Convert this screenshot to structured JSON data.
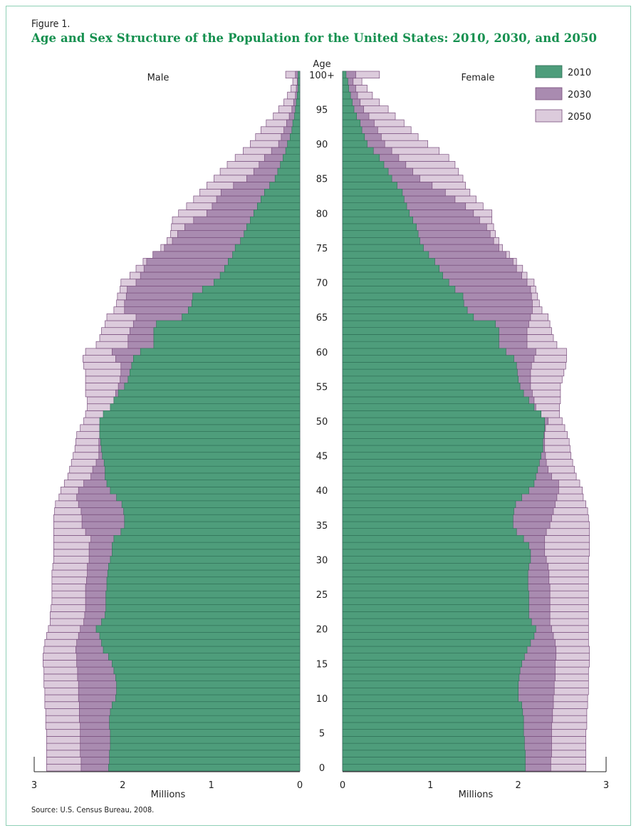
{
  "figure_label": "Figure 1.",
  "source": "Source: U.S. Census Bureau, 2008.",
  "colors": {
    "s2010": "#4e9d7b",
    "s2030": "#a98bb0",
    "s2050": "#dccbdc",
    "outline": "#7a4f7e",
    "frame": "#8fd0b6",
    "title": "#15904f"
  },
  "chart_data": {
    "type": "bar",
    "subtype": "population-pyramid",
    "title": "Age and Sex Structure of the Population for the United States: 2010, 2030, and 2050",
    "ylabel": "Age",
    "xlabel": "Millions",
    "xlim": [
      0,
      3
    ],
    "x_ticks": [
      "0",
      "1",
      "2",
      "3"
    ],
    "age_tick_labels": [
      "0",
      "5",
      "10",
      "15",
      "20",
      "25",
      "30",
      "35",
      "40",
      "45",
      "50",
      "55",
      "60",
      "65",
      "70",
      "75",
      "80",
      "85",
      "90",
      "95",
      "100+"
    ],
    "left_label": "Male",
    "right_label": "Female",
    "legend": [
      "2010",
      "2030",
      "2050"
    ],
    "legend_position": "top-right",
    "ages": "0 to 100+ by single year",
    "series": [
      {
        "name": "2010",
        "sex": "Male",
        "values": [
          2.16,
          2.15,
          2.15,
          2.14,
          2.14,
          2.14,
          2.15,
          2.15,
          2.14,
          2.12,
          2.08,
          2.07,
          2.07,
          2.08,
          2.1,
          2.12,
          2.16,
          2.22,
          2.24,
          2.26,
          2.3,
          2.24,
          2.2,
          2.19,
          2.19,
          2.19,
          2.18,
          2.18,
          2.17,
          2.16,
          2.14,
          2.12,
          2.12,
          2.1,
          2.02,
          1.98,
          1.98,
          1.99,
          2.01,
          2.07,
          2.14,
          2.18,
          2.2,
          2.2,
          2.21,
          2.23,
          2.24,
          2.25,
          2.26,
          2.26,
          2.26,
          2.22,
          2.14,
          2.1,
          2.05,
          1.98,
          1.94,
          1.92,
          1.9,
          1.88,
          1.8,
          1.65,
          1.65,
          1.65,
          1.62,
          1.33,
          1.26,
          1.22,
          1.21,
          1.1,
          0.97,
          0.9,
          0.85,
          0.81,
          0.76,
          0.73,
          0.67,
          0.63,
          0.6,
          0.56,
          0.52,
          0.48,
          0.44,
          0.4,
          0.34,
          0.28,
          0.25,
          0.22,
          0.19,
          0.16,
          0.14,
          0.11,
          0.09,
          0.08,
          0.06,
          0.05,
          0.04,
          0.03,
          0.02,
          0.02,
          0.02
        ]
      },
      {
        "name": "2030",
        "sex": "Male",
        "values": [
          2.47,
          2.47,
          2.48,
          2.48,
          2.48,
          2.48,
          2.48,
          2.49,
          2.49,
          2.49,
          2.5,
          2.5,
          2.5,
          2.51,
          2.51,
          2.52,
          2.52,
          2.53,
          2.52,
          2.5,
          2.48,
          2.44,
          2.43,
          2.42,
          2.42,
          2.42,
          2.42,
          2.41,
          2.4,
          2.4,
          2.38,
          2.38,
          2.38,
          2.36,
          2.42,
          2.46,
          2.46,
          2.47,
          2.5,
          2.52,
          2.5,
          2.44,
          2.36,
          2.34,
          2.3,
          2.27,
          2.27,
          2.27,
          2.26,
          2.26,
          2.24,
          2.16,
          2.12,
          2.1,
          2.08,
          2.05,
          2.03,
          2.02,
          2.02,
          2.08,
          2.12,
          1.94,
          1.94,
          1.92,
          1.88,
          1.85,
          1.98,
          1.98,
          1.96,
          1.95,
          1.85,
          1.8,
          1.76,
          1.73,
          1.66,
          1.53,
          1.44,
          1.38,
          1.3,
          1.2,
          1.05,
          0.99,
          0.94,
          0.89,
          0.75,
          0.6,
          0.52,
          0.46,
          0.4,
          0.32,
          0.24,
          0.21,
          0.18,
          0.15,
          0.12,
          0.09,
          0.07,
          0.05,
          0.04,
          0.03,
          0.05
        ]
      },
      {
        "name": "2050",
        "sex": "Male",
        "values": [
          2.86,
          2.86,
          2.86,
          2.86,
          2.86,
          2.86,
          2.87,
          2.87,
          2.87,
          2.88,
          2.88,
          2.88,
          2.89,
          2.89,
          2.89,
          2.9,
          2.9,
          2.89,
          2.88,
          2.86,
          2.84,
          2.82,
          2.82,
          2.81,
          2.8,
          2.8,
          2.8,
          2.8,
          2.8,
          2.79,
          2.78,
          2.78,
          2.78,
          2.78,
          2.78,
          2.78,
          2.78,
          2.77,
          2.76,
          2.72,
          2.7,
          2.66,
          2.62,
          2.6,
          2.58,
          2.56,
          2.54,
          2.53,
          2.52,
          2.48,
          2.44,
          2.42,
          2.4,
          2.4,
          2.42,
          2.42,
          2.42,
          2.42,
          2.44,
          2.45,
          2.42,
          2.3,
          2.26,
          2.24,
          2.2,
          2.18,
          2.1,
          2.07,
          2.06,
          2.03,
          2.02,
          1.92,
          1.85,
          1.77,
          1.64,
          1.57,
          1.5,
          1.46,
          1.45,
          1.44,
          1.37,
          1.28,
          1.2,
          1.13,
          1.05,
          0.97,
          0.9,
          0.82,
          0.73,
          0.64,
          0.56,
          0.5,
          0.44,
          0.38,
          0.3,
          0.24,
          0.18,
          0.14,
          0.1,
          0.08,
          0.16
        ]
      },
      {
        "name": "2010",
        "sex": "Female",
        "values": [
          2.08,
          2.08,
          2.08,
          2.07,
          2.07,
          2.06,
          2.06,
          2.06,
          2.05,
          2.04,
          2.0,
          2.0,
          2.0,
          2.01,
          2.02,
          2.04,
          2.07,
          2.1,
          2.14,
          2.18,
          2.2,
          2.15,
          2.12,
          2.12,
          2.12,
          2.12,
          2.11,
          2.11,
          2.11,
          2.12,
          2.14,
          2.14,
          2.12,
          2.06,
          1.98,
          1.94,
          1.94,
          1.95,
          1.97,
          2.04,
          2.12,
          2.18,
          2.2,
          2.22,
          2.24,
          2.26,
          2.28,
          2.28,
          2.29,
          2.3,
          2.3,
          2.26,
          2.18,
          2.12,
          2.06,
          2.02,
          2.0,
          1.99,
          1.98,
          1.95,
          1.86,
          1.78,
          1.78,
          1.78,
          1.74,
          1.49,
          1.42,
          1.38,
          1.37,
          1.28,
          1.21,
          1.14,
          1.1,
          1.05,
          0.98,
          0.92,
          0.88,
          0.86,
          0.84,
          0.8,
          0.76,
          0.73,
          0.7,
          0.68,
          0.62,
          0.56,
          0.52,
          0.47,
          0.42,
          0.35,
          0.28,
          0.25,
          0.22,
          0.2,
          0.16,
          0.13,
          0.11,
          0.09,
          0.07,
          0.06,
          0.04
        ]
      },
      {
        "name": "2030",
        "sex": "Female",
        "values": [
          2.37,
          2.37,
          2.38,
          2.38,
          2.38,
          2.38,
          2.38,
          2.39,
          2.39,
          2.4,
          2.4,
          2.41,
          2.41,
          2.42,
          2.42,
          2.42,
          2.43,
          2.43,
          2.42,
          2.4,
          2.38,
          2.36,
          2.36,
          2.36,
          2.36,
          2.36,
          2.36,
          2.35,
          2.35,
          2.34,
          2.32,
          2.3,
          2.3,
          2.3,
          2.32,
          2.36,
          2.38,
          2.4,
          2.42,
          2.44,
          2.46,
          2.46,
          2.38,
          2.34,
          2.32,
          2.31,
          2.3,
          2.3,
          2.3,
          2.31,
          2.34,
          2.26,
          2.2,
          2.18,
          2.16,
          2.14,
          2.14,
          2.14,
          2.15,
          2.18,
          2.2,
          2.1,
          2.1,
          2.1,
          2.12,
          2.14,
          2.16,
          2.16,
          2.15,
          2.14,
          2.1,
          2.04,
          1.98,
          1.94,
          1.86,
          1.78,
          1.72,
          1.68,
          1.64,
          1.56,
          1.49,
          1.4,
          1.28,
          1.17,
          1.02,
          0.88,
          0.8,
          0.72,
          0.64,
          0.56,
          0.48,
          0.44,
          0.4,
          0.36,
          0.3,
          0.24,
          0.2,
          0.17,
          0.15,
          0.12,
          0.15
        ]
      },
      {
        "name": "2050",
        "sex": "Female",
        "values": [
          2.77,
          2.77,
          2.77,
          2.77,
          2.77,
          2.77,
          2.78,
          2.78,
          2.78,
          2.79,
          2.79,
          2.8,
          2.8,
          2.8,
          2.8,
          2.81,
          2.81,
          2.81,
          2.8,
          2.8,
          2.8,
          2.8,
          2.8,
          2.8,
          2.8,
          2.8,
          2.8,
          2.8,
          2.8,
          2.8,
          2.8,
          2.81,
          2.81,
          2.81,
          2.81,
          2.81,
          2.8,
          2.79,
          2.77,
          2.74,
          2.73,
          2.7,
          2.66,
          2.64,
          2.62,
          2.6,
          2.59,
          2.58,
          2.56,
          2.53,
          2.5,
          2.47,
          2.47,
          2.48,
          2.48,
          2.48,
          2.5,
          2.52,
          2.54,
          2.55,
          2.55,
          2.44,
          2.4,
          2.38,
          2.36,
          2.34,
          2.27,
          2.24,
          2.22,
          2.2,
          2.18,
          2.1,
          2.05,
          1.98,
          1.9,
          1.82,
          1.78,
          1.74,
          1.72,
          1.7,
          1.7,
          1.6,
          1.52,
          1.45,
          1.4,
          1.37,
          1.32,
          1.28,
          1.21,
          1.1,
          0.97,
          0.86,
          0.78,
          0.7,
          0.6,
          0.52,
          0.42,
          0.34,
          0.28,
          0.22,
          0.42
        ]
      }
    ]
  }
}
